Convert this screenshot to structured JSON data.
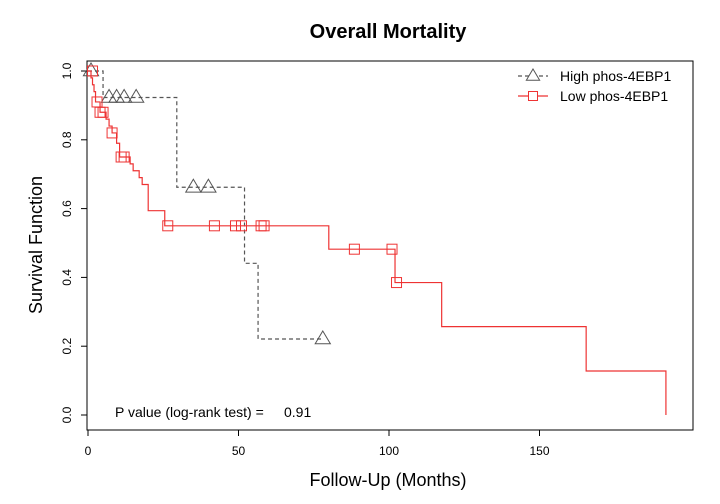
{
  "chart_data": {
    "type": "line",
    "title": "Overall Mortality",
    "xlabel": "Follow-Up (Months)",
    "ylabel": "Survival Function",
    "xlim": [
      0,
      200
    ],
    "ylim": [
      0,
      1
    ],
    "x_ticks": [
      0,
      50,
      100,
      150
    ],
    "y_ticks": [
      0.0,
      0.2,
      0.4,
      0.6,
      0.8,
      1.0
    ],
    "x_tick_labels": [
      "0",
      "50",
      "100",
      "150"
    ],
    "y_tick_labels": [
      "0.0",
      "0.2",
      "0.4",
      "0.6",
      "0.8",
      "1.0"
    ],
    "grid": false,
    "legend_position": "top-right",
    "annotation": {
      "label": "P value (log-rank test) =",
      "value": "0.91"
    },
    "series": [
      {
        "name": "High phos-4EBP1",
        "color": "#555555",
        "line_style": "dashed",
        "marker": "triangle",
        "steps": [
          [
            0,
            1.0
          ],
          [
            5,
            0.923
          ],
          [
            29.5,
            0.662
          ],
          [
            52,
            0.441
          ],
          [
            56.5,
            0.221
          ],
          [
            78,
            0.221
          ]
        ],
        "censored": [
          [
            1,
            1.0
          ],
          [
            7,
            0.923
          ],
          [
            9.5,
            0.923
          ],
          [
            12,
            0.923
          ],
          [
            16,
            0.923
          ],
          [
            35,
            0.662
          ],
          [
            40,
            0.662
          ],
          [
            78,
            0.221
          ]
        ]
      },
      {
        "name": "Low phos-4EBP1",
        "color": "#ee3333",
        "line_style": "solid",
        "marker": "square",
        "steps": [
          [
            0,
            1.0
          ],
          [
            1,
            0.98
          ],
          [
            1.5,
            0.96
          ],
          [
            2,
            0.94
          ],
          [
            2.5,
            0.91
          ],
          [
            4,
            0.88
          ],
          [
            6,
            0.86
          ],
          [
            7,
            0.84
          ],
          [
            8,
            0.82
          ],
          [
            9.5,
            0.79
          ],
          [
            10.5,
            0.75
          ],
          [
            14,
            0.73
          ],
          [
            15,
            0.71
          ],
          [
            17,
            0.69
          ],
          [
            18,
            0.67
          ],
          [
            20,
            0.594
          ],
          [
            25.5,
            0.55
          ],
          [
            80,
            0.482
          ],
          [
            102,
            0.385
          ],
          [
            117.5,
            0.257
          ],
          [
            165.5,
            0.128
          ],
          [
            192,
            0.0
          ]
        ],
        "censored": [
          [
            1.5,
            1.0
          ],
          [
            3,
            0.91
          ],
          [
            4,
            0.88
          ],
          [
            5,
            0.88
          ],
          [
            8,
            0.82
          ],
          [
            11,
            0.75
          ],
          [
            12,
            0.75
          ],
          [
            26.5,
            0.55
          ],
          [
            42,
            0.55
          ],
          [
            49,
            0.55
          ],
          [
            51,
            0.55
          ],
          [
            57.5,
            0.55
          ],
          [
            58.5,
            0.55
          ],
          [
            88.5,
            0.482
          ],
          [
            101,
            0.482
          ],
          [
            102.5,
            0.385
          ]
        ]
      }
    ]
  }
}
